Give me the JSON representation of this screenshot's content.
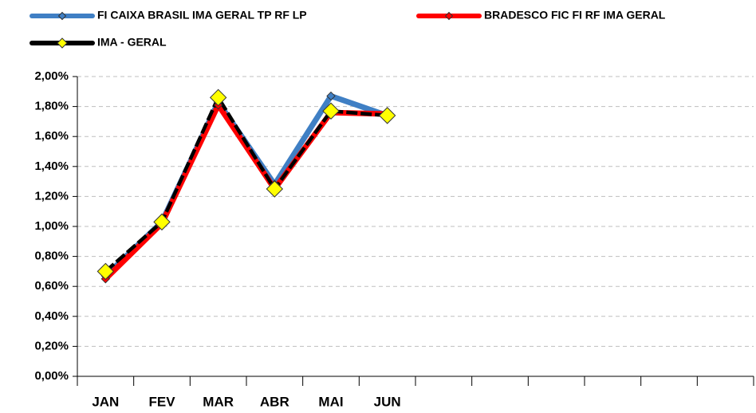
{
  "chart_data": {
    "type": "line",
    "categories": [
      "JAN",
      "FEV",
      "MAR",
      "ABR",
      "MAI",
      "JUN",
      null,
      null,
      null,
      null,
      null,
      null
    ],
    "series": [
      {
        "name": "FI CAIXA BRASIL IMA GERAL TP RF LP",
        "color": "#3f7fc4",
        "marker_color": "#3f7fc4",
        "values": [
          0.67,
          1.03,
          1.83,
          1.28,
          1.87,
          1.74,
          null,
          null,
          null,
          null,
          null,
          null
        ]
      },
      {
        "name": "BRADESCO FIC FI RF IMA GERAL",
        "color": "#ff0000",
        "marker_color": "#ff0000",
        "values": [
          0.65,
          1.02,
          1.81,
          1.25,
          1.76,
          1.75,
          null,
          null,
          null,
          null,
          null,
          null
        ]
      },
      {
        "name": "IMA - GERAL",
        "color": "#000000",
        "marker_color": "#ffff00",
        "values": [
          0.7,
          1.03,
          1.86,
          1.25,
          1.77,
          1.74,
          null,
          null,
          null,
          null,
          null,
          null
        ]
      }
    ],
    "ylim": [
      0,
      2
    ],
    "yticks": [
      {
        "value": 0,
        "label": "0,00%"
      },
      {
        "value": 0.2,
        "label": "0,20%"
      },
      {
        "value": 0.4,
        "label": "0,40%"
      },
      {
        "value": 0.6,
        "label": "0,60%"
      },
      {
        "value": 0.8,
        "label": "0,80%"
      },
      {
        "value": 1,
        "label": "1,00%"
      },
      {
        "value": 1.2,
        "label": "1,20%"
      },
      {
        "value": 1.4,
        "label": "1,40%"
      },
      {
        "value": 1.6,
        "label": "1,60%"
      },
      {
        "value": 1.8,
        "label": "1,80%"
      },
      {
        "value": 2,
        "label": "2,00%"
      }
    ],
    "grid": true,
    "legend": "top"
  }
}
